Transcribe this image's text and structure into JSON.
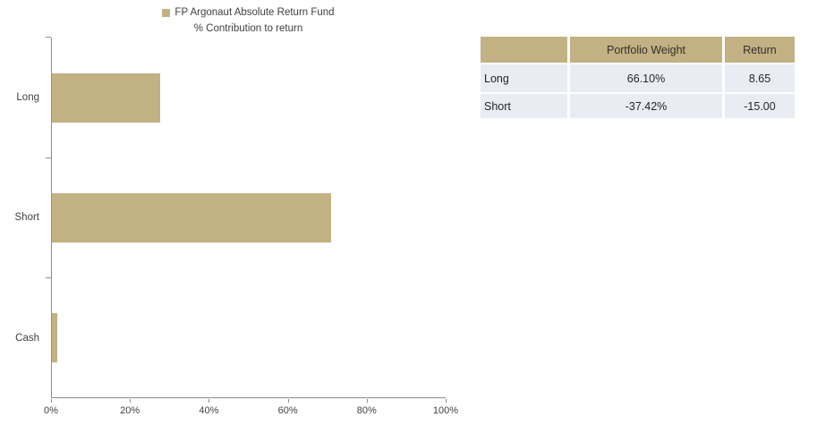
{
  "chart_data": {
    "type": "bar",
    "orientation": "horizontal",
    "title": "FP Argonaut Absolute Return Fund",
    "subtitle": "% Contribution to return",
    "categories": [
      "Long",
      "Short",
      "Cash"
    ],
    "values": [
      27.5,
      71,
      1.4
    ],
    "value_unit": "%",
    "xlim": [
      0,
      100
    ],
    "x_ticks": [
      "0%",
      "20%",
      "40%",
      "60%",
      "80%",
      "100%"
    ],
    "x_tick_positions": [
      0,
      20,
      40,
      60,
      80,
      100
    ],
    "grid": false,
    "legend_position": "top-center",
    "bar_color": "#c2b183"
  },
  "table": {
    "headers": [
      "",
      "Portfolio Weight",
      "Return"
    ],
    "rows": [
      [
        "Long",
        "66.10%",
        "8.65"
      ],
      [
        "Short",
        "-37.42%",
        "-15.00"
      ]
    ]
  },
  "colors": {
    "accent_tan": "#c2b183",
    "table_row_bg": "#e9ecf3",
    "axis_gray": "#8e8e8e",
    "text_dark": "#3f3f3f"
  }
}
